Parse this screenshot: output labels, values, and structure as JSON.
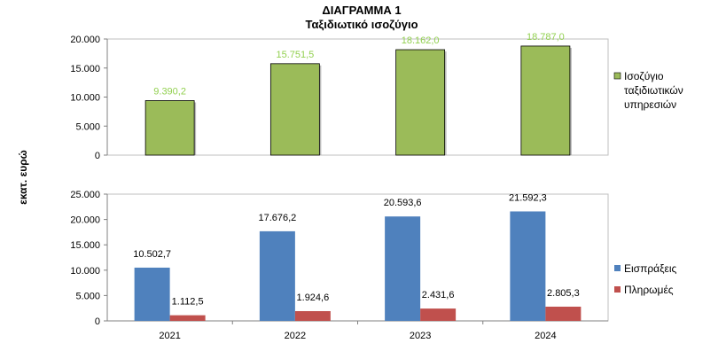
{
  "title": "ΔΙΑΓΡΑΜΜΑ 1",
  "subtitle": "Ταξιδιωτικό ισοζύγιο",
  "y_axis_label": "εκατ. ευρώ",
  "colors": {
    "balance": "#9bbb59",
    "receipts": "#4f81bd",
    "payments": "#c0504d",
    "balance_label": "#92d050"
  },
  "chart_data": [
    {
      "type": "bar",
      "categories": [
        "2021",
        "2022",
        "2023",
        "2024"
      ],
      "ylim": [
        0,
        20000
      ],
      "yticks": [
        0,
        5000,
        10000,
        15000,
        20000
      ],
      "ytick_labels": [
        "0",
        "5.000",
        "10.000",
        "15.000",
        "20.000"
      ],
      "series": [
        {
          "name": "Ισοζύγιο ταξιδιωτικών υπηρεσιών",
          "legend_lines": [
            "Ισοζύγιο",
            "ταξιδιωτικών",
            "υπηρεσιών"
          ],
          "values": [
            9390.2,
            15751.5,
            18162.0,
            18787.0
          ],
          "labels": [
            "9.390,2",
            "15.751,5",
            "18.162,0",
            "18.787,0"
          ]
        }
      ],
      "grid": false,
      "legend": "right"
    },
    {
      "type": "bar",
      "categories": [
        "2021",
        "2022",
        "2023",
        "2024"
      ],
      "ylim": [
        0,
        25000
      ],
      "yticks": [
        0,
        5000,
        10000,
        15000,
        20000,
        25000
      ],
      "ytick_labels": [
        "0",
        "5.000",
        "10.000",
        "15.000",
        "20.000",
        "25.000"
      ],
      "series": [
        {
          "name": "Εισπράξεις",
          "values": [
            10502.7,
            17676.2,
            20593.6,
            21592.3
          ],
          "labels": [
            "10.502,7",
            "17.676,2",
            "20.593,6",
            "21.592,3"
          ]
        },
        {
          "name": "Πληρωμές",
          "values": [
            1112.5,
            1924.6,
            2431.6,
            2805.3
          ],
          "labels": [
            "1.112,5",
            "1.924,6",
            "2.431,6",
            "2.805,3"
          ]
        }
      ],
      "grid": false,
      "legend": "right"
    }
  ]
}
